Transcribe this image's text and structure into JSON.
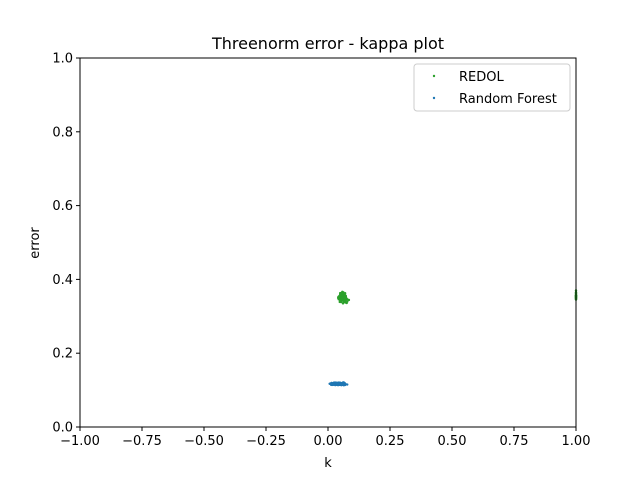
{
  "chart_data": {
    "type": "scatter",
    "title": "Threenorm error - kappa plot",
    "xlabel": "k",
    "ylabel": "error",
    "xlim": [
      -1.0,
      1.0
    ],
    "ylim": [
      0.0,
      1.0
    ],
    "xticks": [
      -1.0,
      -0.75,
      -0.5,
      -0.25,
      0.0,
      0.25,
      0.5,
      0.75,
      1.0
    ],
    "xtick_labels": [
      "−1.00",
      "−0.75",
      "−0.50",
      "−0.25",
      "0.00",
      "0.25",
      "0.50",
      "0.75",
      "1.00"
    ],
    "yticks": [
      0.0,
      0.2,
      0.4,
      0.6,
      0.8,
      1.0
    ],
    "ytick_labels": [
      "0.0",
      "0.2",
      "0.4",
      "0.6",
      "0.8",
      "1.0"
    ],
    "grid": false,
    "legend_position": "top-right",
    "series": [
      {
        "name": "REDOL",
        "color": "#2ca02c",
        "clusters": [
          {
            "x_center": 0.06,
            "y_center": 0.35,
            "x_spread": 0.03,
            "y_spread": 0.02,
            "count": 150
          },
          {
            "x_center": 1.0,
            "y_center": 0.355,
            "x_spread": 0.0,
            "y_spread": 0.02,
            "count": 30
          }
        ]
      },
      {
        "name": "Random Forest",
        "color": "#1f77b4",
        "clusters": [
          {
            "x_center": 0.04,
            "y_center": 0.117,
            "x_spread": 0.05,
            "y_spread": 0.005,
            "count": 300
          }
        ]
      }
    ]
  }
}
